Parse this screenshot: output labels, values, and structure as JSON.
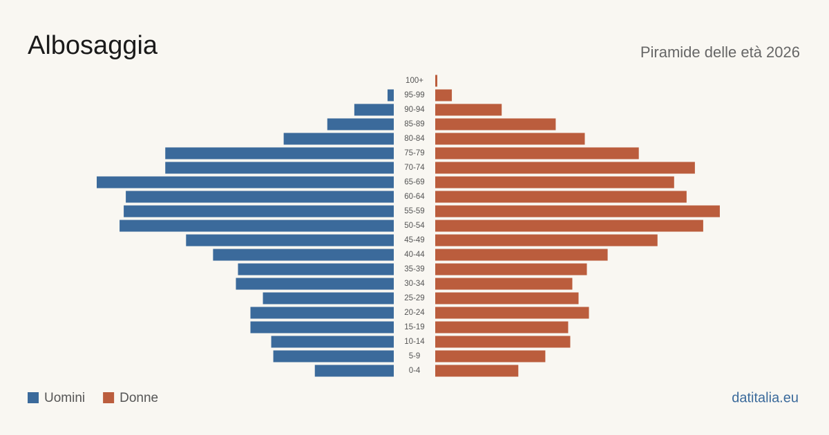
{
  "chart_data": {
    "type": "pyramid",
    "title": "Albosaggia",
    "subtitle": "Piramide delle età 2026",
    "categories": [
      "0-4",
      "5-9",
      "10-14",
      "15-19",
      "20-24",
      "25-29",
      "30-34",
      "35-39",
      "40-44",
      "45-49",
      "50-54",
      "55-59",
      "60-64",
      "65-69",
      "70-74",
      "75-79",
      "80-84",
      "85-89",
      "90-94",
      "95-99",
      "100+"
    ],
    "series": [
      {
        "name": "Uomini",
        "color": "#3b6a9b",
        "values": [
          38,
          58,
          59,
          69,
          69,
          63,
          76,
          75,
          87,
          100,
          132,
          130,
          129,
          143,
          110,
          110,
          53,
          32,
          19,
          3,
          0
        ]
      },
      {
        "name": "Donne",
        "color": "#bb5d3d",
        "values": [
          40,
          53,
          65,
          64,
          74,
          69,
          66,
          73,
          83,
          107,
          129,
          137,
          121,
          115,
          125,
          98,
          72,
          58,
          32,
          8,
          1
        ]
      }
    ],
    "source": "datitalia.eu"
  }
}
